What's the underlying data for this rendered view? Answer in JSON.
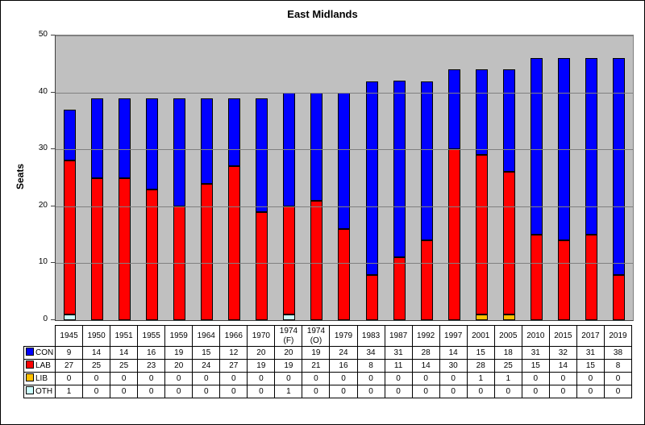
{
  "title": "East Midlands",
  "y_axis": {
    "label": "Seats",
    "ticks": [
      0,
      10,
      20,
      30,
      40,
      50
    ]
  },
  "chart_data": {
    "type": "bar",
    "stacked": true,
    "title": "East Midlands",
    "xlabel": "",
    "ylabel": "Seats",
    "ylim": [
      0,
      50
    ],
    "grid": true,
    "plot_bg_color": "#C0C0C0",
    "gridline_color": "#808080",
    "legend_position": "table-left",
    "categories": [
      "1945",
      "1950",
      "1951",
      "1955",
      "1959",
      "1964",
      "1966",
      "1970",
      "1974 (F)",
      "1974 (O)",
      "1979",
      "1983",
      "1987",
      "1992",
      "1997",
      "2001",
      "2005",
      "2010",
      "2015",
      "2017",
      "2019"
    ],
    "series": [
      {
        "name": "CON",
        "color": "#0000FF",
        "values": [
          9,
          14,
          14,
          16,
          19,
          15,
          12,
          20,
          20,
          19,
          24,
          34,
          31,
          28,
          14,
          15,
          18,
          31,
          32,
          31,
          38
        ]
      },
      {
        "name": "LAB",
        "color": "#FF0000",
        "values": [
          27,
          25,
          25,
          23,
          20,
          24,
          27,
          19,
          19,
          21,
          16,
          8,
          11,
          14,
          30,
          28,
          25,
          15,
          14,
          15,
          8
        ]
      },
      {
        "name": "LIB",
        "color": "#FFC000",
        "values": [
          0,
          0,
          0,
          0,
          0,
          0,
          0,
          0,
          0,
          0,
          0,
          0,
          0,
          0,
          0,
          1,
          1,
          0,
          0,
          0,
          0
        ]
      },
      {
        "name": "OTH",
        "color": "#CCFFFF",
        "values": [
          1,
          0,
          0,
          0,
          0,
          0,
          0,
          0,
          1,
          0,
          0,
          0,
          0,
          0,
          0,
          0,
          0,
          0,
          0,
          0,
          0
        ]
      }
    ]
  }
}
